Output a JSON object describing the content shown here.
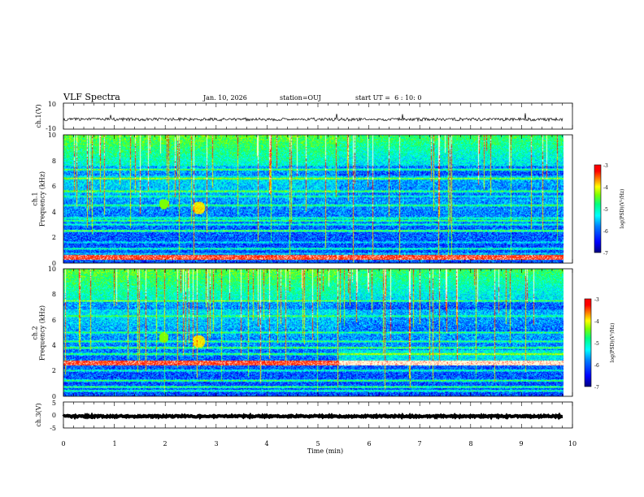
{
  "header": {
    "title": "VLF Spectra",
    "date": "Jan. 10, 2026",
    "station": "station=OUJ",
    "start": "start UT =  6 : 10: 0"
  },
  "colors": {
    "waveform": "#000000",
    "axes": "#000000",
    "colormap": [
      "#000080",
      "#0000ff",
      "#0080ff",
      "#00ffff",
      "#00ff80",
      "#80ff00",
      "#ffff00",
      "#ff8000",
      "#ff0000",
      "#ffffff"
    ]
  },
  "chart_data": [
    {
      "type": "line",
      "id": "ch1_waveform",
      "ylabel": "ch.1(V)",
      "ylim": [
        -10,
        10
      ],
      "yticks": [
        "10",
        "-10"
      ],
      "baseline": -2.5,
      "noise_amplitude": 1.2
    },
    {
      "type": "heatmap",
      "id": "ch1_spectrogram",
      "ylabel": "ch.1\nFrequency (kHz)",
      "ylim": [
        0,
        10
      ],
      "yticks": [
        "0",
        "2",
        "4",
        "6",
        "8",
        "10"
      ],
      "colorbar": {
        "label": "log(PSD)(V²/Hz)",
        "range": [
          -7,
          -3
        ],
        "ticks": [
          "-3",
          "-4",
          "-5",
          "-6",
          "-7"
        ]
      },
      "bands_khz": [
        0.3,
        0.5,
        0.7,
        1.1,
        1.6,
        2.5,
        3.0,
        3.3,
        3.5,
        4.5,
        5.2,
        5.6,
        6.6,
        7.3
      ],
      "bright_band_khz": 0.4
    },
    {
      "type": "heatmap",
      "id": "ch2_spectrogram",
      "ylabel": "ch.2\nFrequency (kHz)",
      "ylim": [
        0,
        10
      ],
      "yticks": [
        "0",
        "2",
        "4",
        "6",
        "8",
        "10"
      ],
      "colorbar": {
        "label": "log(PSD)(V²/Hz)",
        "range": [
          -7,
          -3
        ],
        "ticks": [
          "-3",
          "-4",
          "-5",
          "-6",
          "-7"
        ]
      },
      "bands_khz": [
        0.4,
        0.7,
        1.2,
        2.0,
        2.6,
        3.3,
        3.8,
        4.3,
        5.0,
        6.3,
        7.5
      ],
      "bright_band_khz": 2.6
    },
    {
      "type": "line",
      "id": "ch3_waveform",
      "ylabel": "ch.3(V)",
      "ylim": [
        -5,
        5
      ],
      "yticks": [
        "5",
        "0",
        "-5"
      ],
      "baseline": -0.5,
      "noise_amplitude": 0.3
    }
  ],
  "xaxis": {
    "label": "Time (min)",
    "ticks": [
      "0",
      "1",
      "2",
      "3",
      "4",
      "5",
      "6",
      "7",
      "8",
      "9",
      "10"
    ],
    "range": [
      0,
      10
    ],
    "data_end": 9.82
  }
}
